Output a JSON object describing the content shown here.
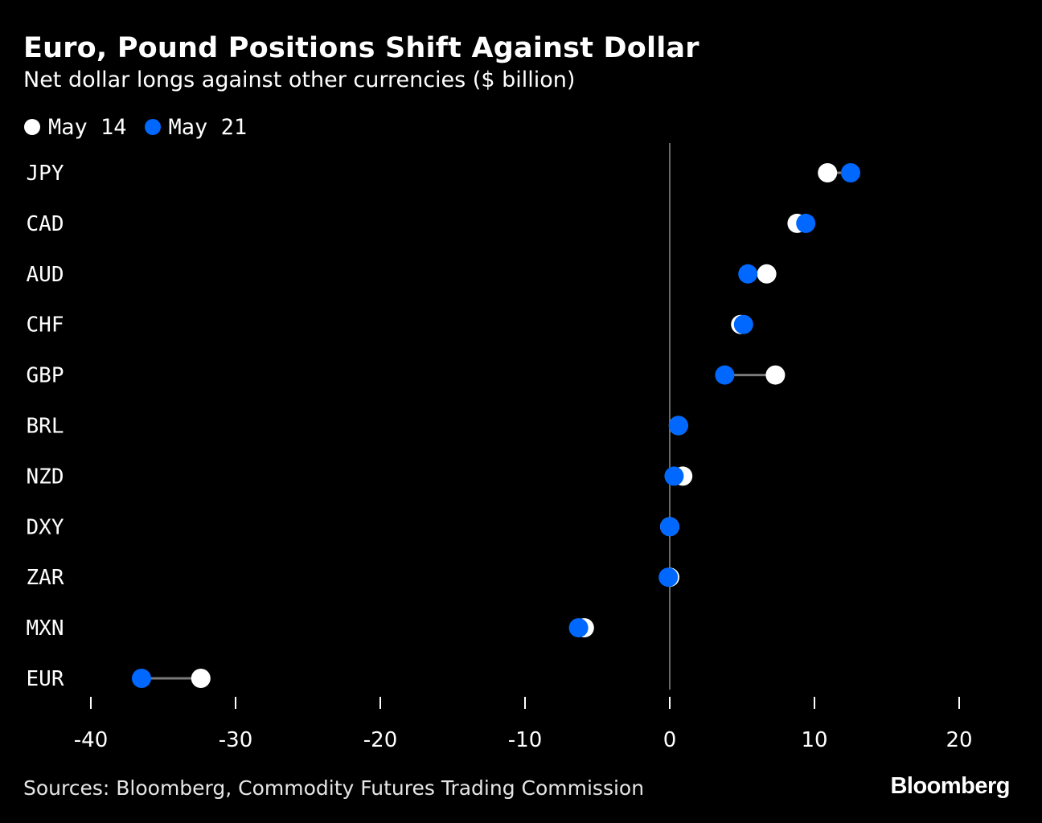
{
  "title": "Euro, Pound Positions Shift Against Dollar",
  "subtitle": "Net dollar longs against other currencies ($ billion)",
  "legend": [
    {
      "label": "May 14",
      "color": "#ffffff"
    },
    {
      "label": "May 21",
      "color": "#0068ff"
    }
  ],
  "colors": {
    "background": "#000000",
    "may14": "#ffffff",
    "may21": "#0068ff",
    "connector": "#7a7a7a",
    "zero_line": "#8a8a8a",
    "text": "#ffffff"
  },
  "chart_data": {
    "type": "dot",
    "title": "Euro, Pound Positions Shift Against Dollar",
    "subtitle": "Net dollar longs against other currencies ($ billion)",
    "xlabel": "",
    "ylabel": "",
    "xlim": [
      -40,
      20
    ],
    "xticks": [
      -40,
      -30,
      -20,
      -10,
      0,
      10,
      20
    ],
    "xtick_labels": [
      "-40",
      "-30",
      "-20",
      "-10",
      "0",
      "10",
      "20"
    ],
    "categories": [
      "JPY",
      "CAD",
      "AUD",
      "CHF",
      "GBP",
      "BRL",
      "NZD",
      "DXY",
      "ZAR",
      "MXN",
      "EUR"
    ],
    "series": [
      {
        "name": "May 14",
        "values": [
          10.9,
          8.8,
          6.7,
          4.9,
          7.3,
          0.6,
          0.9,
          0.0,
          0.0,
          -5.9,
          -32.4
        ]
      },
      {
        "name": "May 21",
        "values": [
          12.5,
          9.4,
          5.4,
          5.1,
          3.8,
          0.6,
          0.3,
          0.0,
          -0.1,
          -6.3,
          -36.5
        ]
      }
    ]
  },
  "footer": {
    "source": "Sources: Bloomberg, Commodity Futures Trading Commission",
    "brand": "Bloomberg"
  }
}
